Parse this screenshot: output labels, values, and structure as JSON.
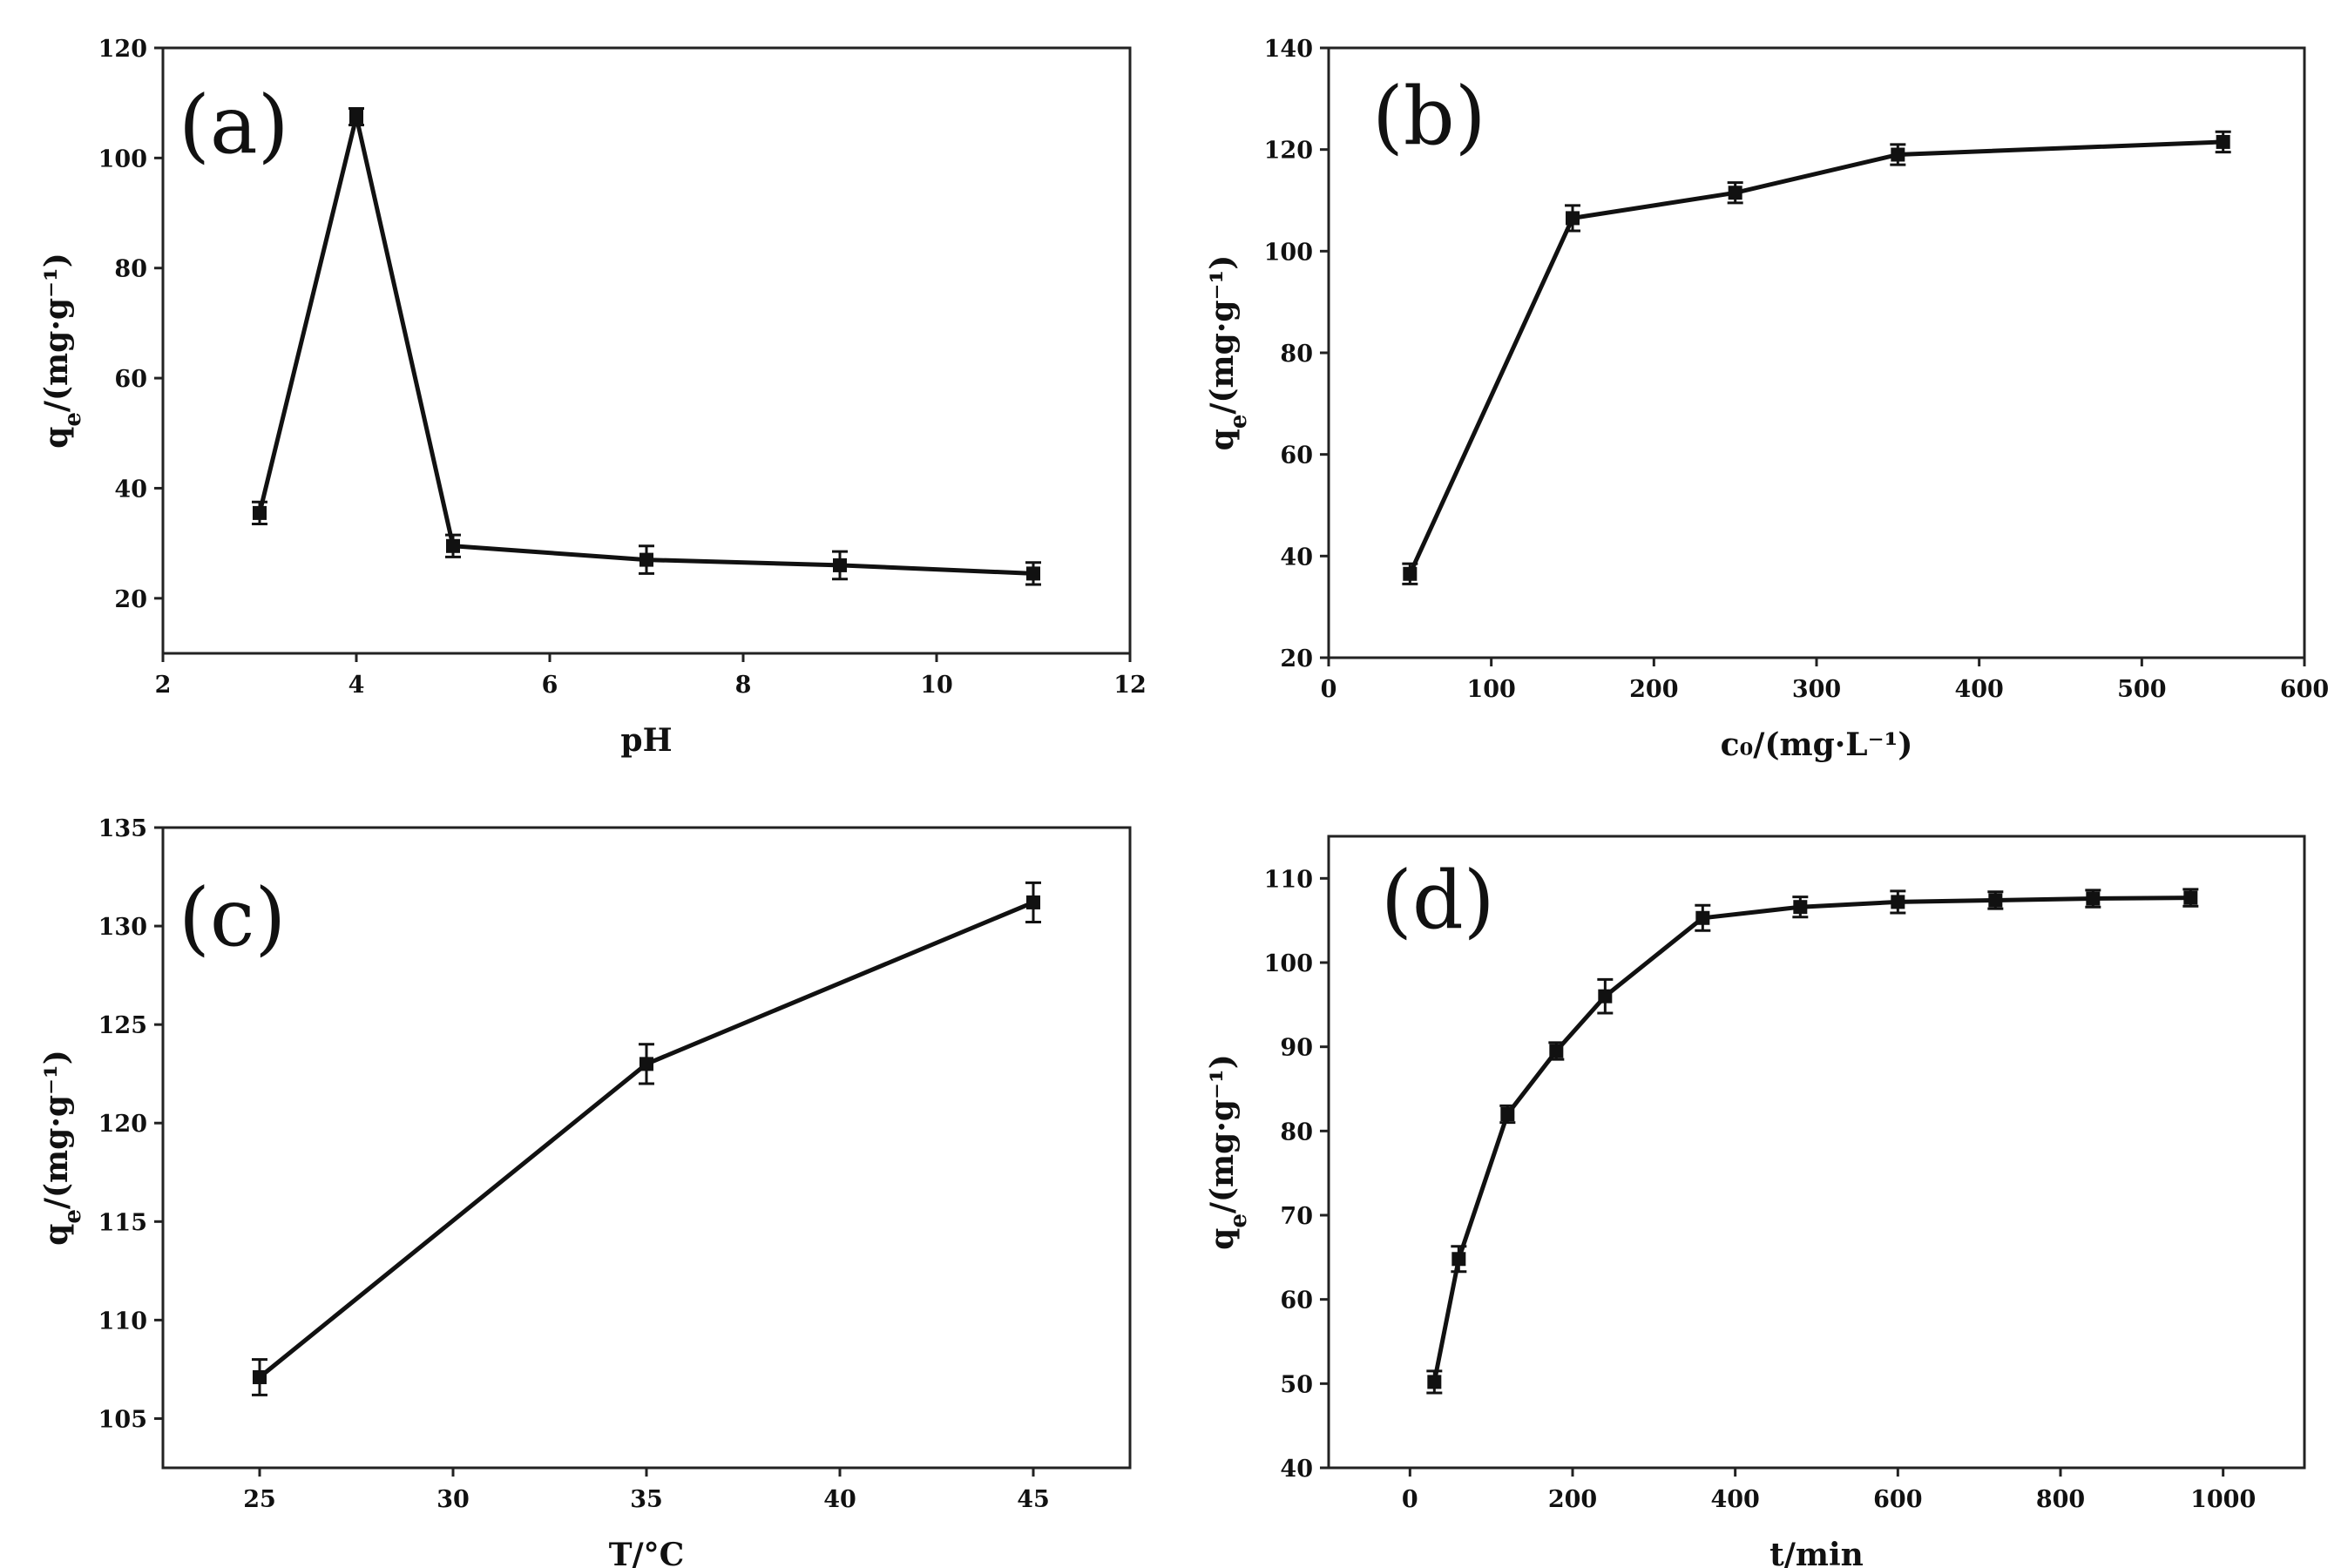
{
  "chart_data": [
    {
      "type": "line",
      "panel_tag": "(a)",
      "xlabel": "pH",
      "ylabel": "q_e/(mg·g⁻¹)",
      "xlim": [
        2,
        12
      ],
      "ylim": [
        10,
        120
      ],
      "xticks": [
        2,
        4,
        6,
        8,
        10,
        12
      ],
      "yticks": [
        20,
        40,
        60,
        80,
        100,
        120
      ],
      "xtick_labels": [
        "2",
        "4",
        "6",
        "8",
        "10",
        "12"
      ],
      "ytick_labels": [
        "20",
        "40",
        "60",
        "80",
        "100",
        "120"
      ],
      "x": [
        3,
        4,
        5,
        7,
        9,
        11
      ],
      "y": [
        35.5,
        107.5,
        29.5,
        27,
        26,
        24.5
      ],
      "err": [
        2,
        1.5,
        2,
        2.5,
        2.5,
        2
      ]
    },
    {
      "type": "line",
      "panel_tag": "(b)",
      "xlabel": "c₀/(mg·L⁻¹)",
      "ylabel": "q_e/(mg·g⁻¹)",
      "xlim": [
        0,
        600
      ],
      "ylim": [
        20,
        140
      ],
      "xticks": [
        0,
        100,
        200,
        300,
        400,
        500,
        600
      ],
      "yticks": [
        20,
        40,
        60,
        80,
        100,
        120,
        140
      ],
      "xtick_labels": [
        "0",
        "100",
        "200",
        "300",
        "400",
        "500",
        "600"
      ],
      "ytick_labels": [
        "20",
        "40",
        "60",
        "80",
        "100",
        "120",
        "140"
      ],
      "x": [
        50,
        150,
        250,
        350,
        550
      ],
      "y": [
        36.5,
        106.5,
        111.5,
        119,
        121.5
      ],
      "err": [
        2,
        2.5,
        2,
        2,
        2
      ]
    },
    {
      "type": "line",
      "panel_tag": "(c)",
      "xlabel": "T/°C",
      "ylabel": "q_e/(mg·g⁻¹)",
      "xlim": [
        22.5,
        47.5
      ],
      "ylim": [
        102.5,
        135
      ],
      "xticks": [
        25,
        30,
        35,
        40,
        45
      ],
      "yticks": [
        105,
        110,
        115,
        120,
        125,
        130,
        135
      ],
      "xtick_labels": [
        "25",
        "30",
        "35",
        "40",
        "45"
      ],
      "ytick_labels": [
        "105",
        "110",
        "115",
        "120",
        "125",
        "130",
        "135"
      ],
      "x": [
        25,
        35,
        45
      ],
      "y": [
        107.1,
        123,
        131.2
      ],
      "err": [
        0.9,
        1,
        1
      ]
    },
    {
      "type": "line",
      "panel_tag": "(d)",
      "xlabel": "t/min",
      "ylabel": "q_e/(mg·g⁻¹)",
      "xlim": [
        -100,
        1100
      ],
      "ylim": [
        40,
        115
      ],
      "xticks": [
        0,
        200,
        400,
        600,
        800,
        1000
      ],
      "yticks": [
        40,
        50,
        60,
        70,
        80,
        90,
        100,
        110
      ],
      "xtick_labels": [
        "0",
        "200",
        "400",
        "600",
        "800",
        "1000"
      ],
      "ytick_labels": [
        "40",
        "50",
        "60",
        "70",
        "80",
        "90",
        "100",
        "110"
      ],
      "x": [
        30,
        60,
        120,
        180,
        240,
        360,
        480,
        600,
        720,
        840,
        960
      ],
      "y": [
        50.2,
        64.8,
        82,
        89.5,
        96,
        105.3,
        106.6,
        107.2,
        107.4,
        107.6,
        107.7
      ],
      "err": [
        1.3,
        1.5,
        1,
        1,
        2,
        1.5,
        1.2,
        1.3,
        1,
        1,
        1
      ]
    }
  ]
}
